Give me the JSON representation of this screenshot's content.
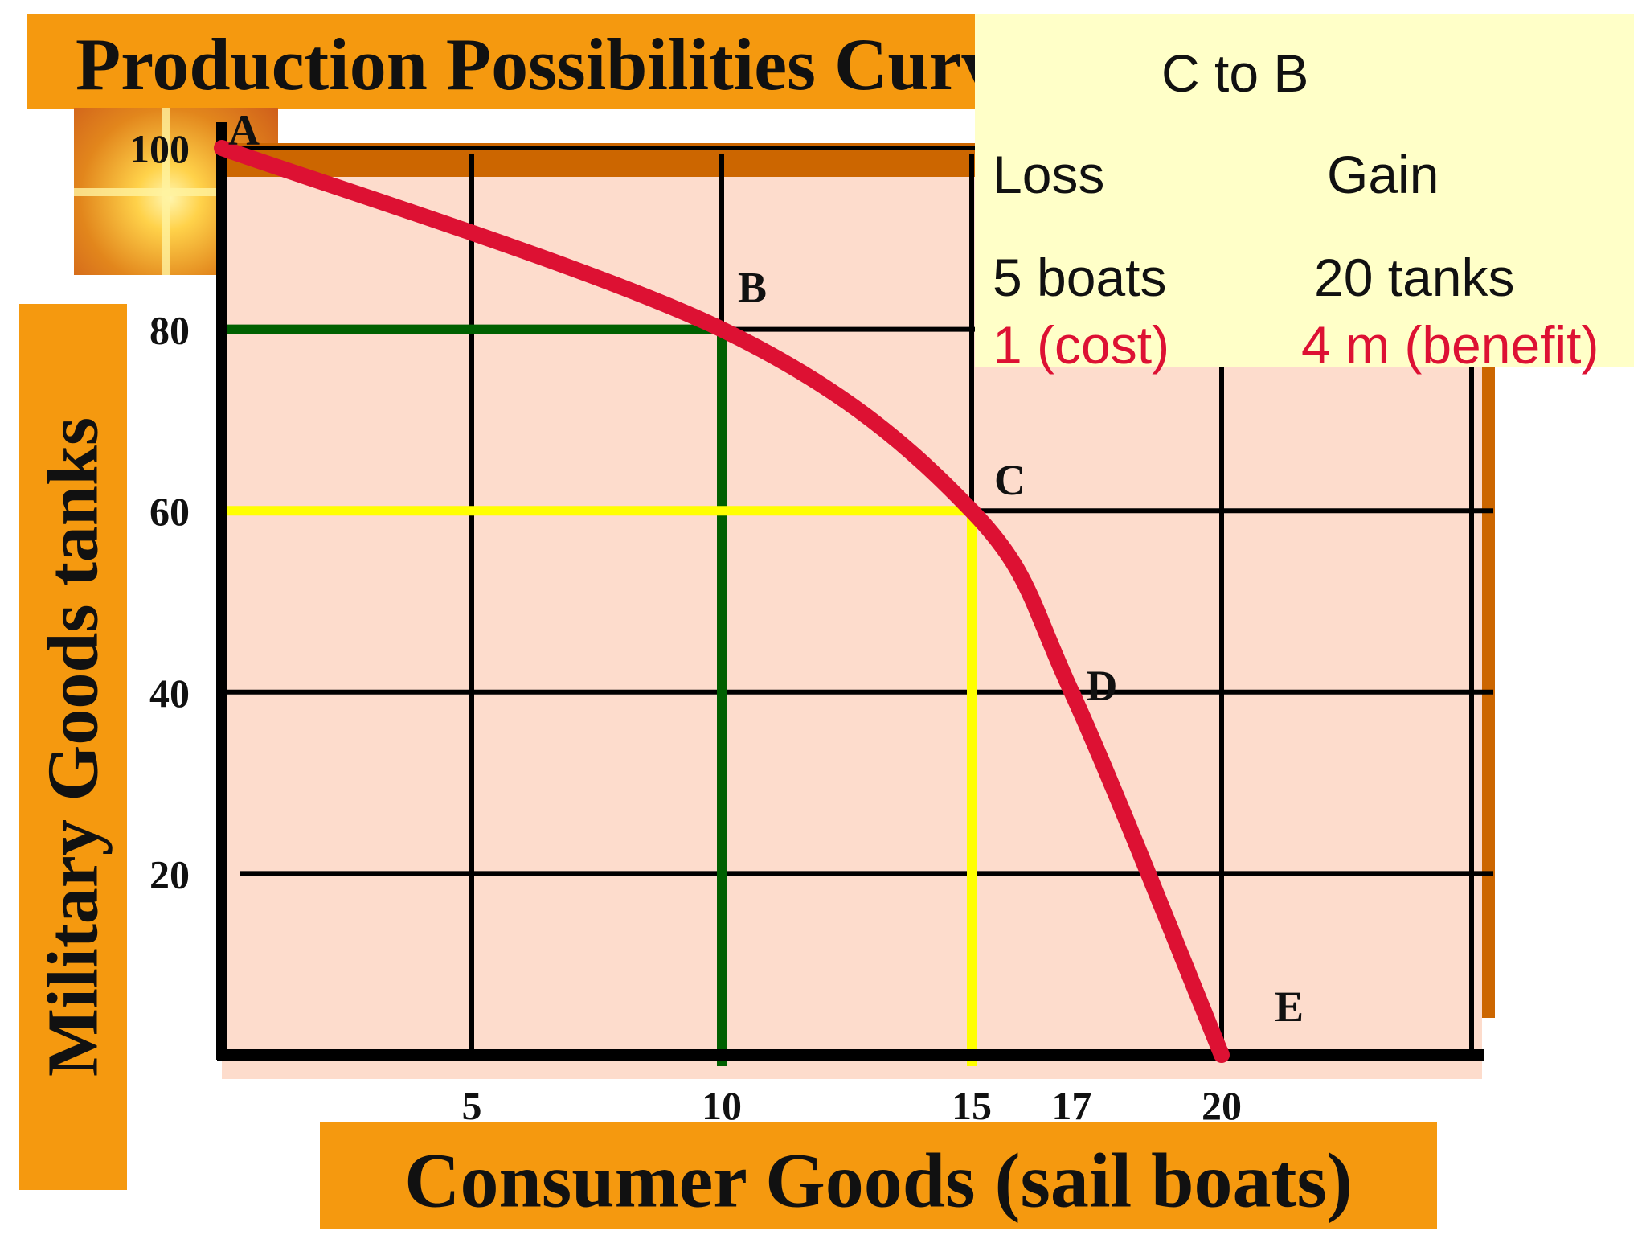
{
  "title": "Production Possibilities Curv",
  "chart_data": {
    "type": "line",
    "title": "Production Possibilities Curv",
    "xlabel": "Consumer Goods (sail boats)",
    "ylabel": "Military Goods tanks",
    "x_ticks": [
      5,
      10,
      15,
      17,
      20
    ],
    "y_ticks": [
      20,
      40,
      60,
      80,
      100
    ],
    "points": [
      {
        "label": "A",
        "x": 0,
        "y": 100
      },
      {
        "label": "B",
        "x": 10,
        "y": 80
      },
      {
        "label": "C",
        "x": 15,
        "y": 60
      },
      {
        "label": "D",
        "x": 17,
        "y": 40
      },
      {
        "label": "E",
        "x": 20,
        "y": 0
      }
    ],
    "guides": [
      {
        "point": "B",
        "x": 10,
        "y": 80,
        "color": "#006000"
      },
      {
        "point": "C",
        "x": 15,
        "y": 60,
        "color": "#ffff00"
      }
    ],
    "curve_color": "#dd1133",
    "plot_background": "#fddccc",
    "grid": true
  },
  "info": {
    "heading": "C to B",
    "loss_header": "Loss",
    "gain_header": "Gain",
    "loss_value": "5 boats",
    "gain_value": "20 tanks",
    "cost": "1 (cost)",
    "benefit": "4 m (benefit)"
  },
  "colors": {
    "orange_bar": "#f5990f",
    "shadow": "#cc6600",
    "info_box": "#ffffc8",
    "red_text": "#dd1133"
  }
}
